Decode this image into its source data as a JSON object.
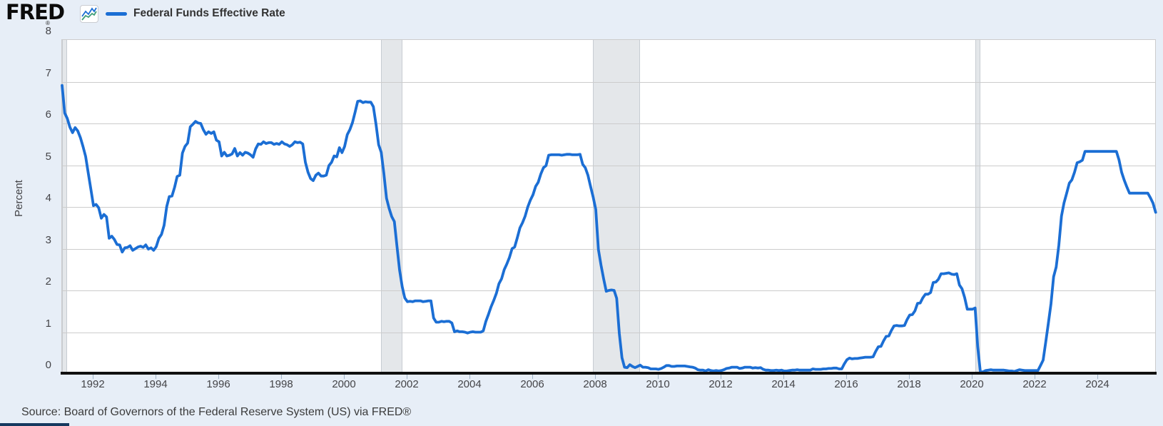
{
  "header": {
    "logo_text": "FRED",
    "registered_mark": "®",
    "legend": {
      "label": "Federal Funds Effective Rate"
    }
  },
  "source": {
    "text": "Source: Board of Governors of the Federal Reserve System (US) via FRED®"
  },
  "colors": {
    "background": "#e7eef7",
    "plot_background": "#ffffff",
    "line": "#1b6ed4",
    "gridline": "#cccccc",
    "axis": "#101010",
    "recession_band": "#e4e7ea",
    "recession_band_border": "#c7ccd2",
    "tick_text": "#444448",
    "navy_bar": "#15395f",
    "icon_line_green": "#3f9e78"
  },
  "chart_data": {
    "type": "line",
    "title": "Federal Funds Effective Rate",
    "xlabel": "",
    "ylabel": "Percent",
    "ylim": [
      0,
      8
    ],
    "yticks": [
      0,
      1,
      2,
      3,
      4,
      5,
      6,
      7,
      8
    ],
    "xticks": [
      1992,
      1994,
      1996,
      1998,
      2000,
      2002,
      2004,
      2006,
      2008,
      2010,
      2012,
      2014,
      2016,
      2018,
      2020,
      2022,
      2024
    ],
    "xlim_decimal_years": [
      1991.0,
      2025.92
    ],
    "grid": true,
    "legend_position": "top-left",
    "line_color": "#1b6ed4",
    "recession_bands": [
      {
        "start": "1990-07",
        "end": "1991-03"
      },
      {
        "start": "2001-03",
        "end": "2001-11"
      },
      {
        "start": "2007-12",
        "end": "2009-06"
      },
      {
        "start": "2020-02",
        "end": "2020-04"
      }
    ],
    "series": [
      {
        "name": "Federal Funds Effective Rate",
        "units": "Percent",
        "frequency": "monthly",
        "start": "1991-01",
        "end": "2025-11",
        "values": [
          6.91,
          6.25,
          6.12,
          5.91,
          5.78,
          5.9,
          5.82,
          5.66,
          5.45,
          5.21,
          4.81,
          4.43,
          4.03,
          4.06,
          3.98,
          3.73,
          3.82,
          3.76,
          3.25,
          3.3,
          3.22,
          3.1,
          3.09,
          2.92,
          3.02,
          3.03,
          3.07,
          2.96,
          3.0,
          3.04,
          3.06,
          3.03,
          3.09,
          2.99,
          3.02,
          2.96,
          3.05,
          3.25,
          3.34,
          3.56,
          4.01,
          4.25,
          4.26,
          4.47,
          4.73,
          4.76,
          5.29,
          5.45,
          5.53,
          5.92,
          5.98,
          6.05,
          6.01,
          6.0,
          5.85,
          5.74,
          5.8,
          5.76,
          5.8,
          5.6,
          5.56,
          5.22,
          5.31,
          5.22,
          5.24,
          5.27,
          5.4,
          5.22,
          5.3,
          5.24,
          5.31,
          5.29,
          5.25,
          5.19,
          5.39,
          5.51,
          5.5,
          5.56,
          5.52,
          5.54,
          5.54,
          5.5,
          5.52,
          5.5,
          5.56,
          5.51,
          5.49,
          5.45,
          5.49,
          5.56,
          5.54,
          5.55,
          5.51,
          5.07,
          4.83,
          4.68,
          4.63,
          4.76,
          4.81,
          4.74,
          4.74,
          4.76,
          4.99,
          5.07,
          5.22,
          5.2,
          5.42,
          5.3,
          5.45,
          5.73,
          5.85,
          6.02,
          6.27,
          6.53,
          6.54,
          6.5,
          6.52,
          6.51,
          6.51,
          6.4,
          5.98,
          5.49,
          5.31,
          4.8,
          4.21,
          3.97,
          3.77,
          3.65,
          3.07,
          2.49,
          2.09,
          1.82,
          1.73,
          1.74,
          1.73,
          1.75,
          1.75,
          1.75,
          1.73,
          1.74,
          1.75,
          1.75,
          1.34,
          1.24,
          1.24,
          1.26,
          1.25,
          1.26,
          1.26,
          1.22,
          1.01,
          1.03,
          1.01,
          1.01,
          1.0,
          0.98,
          1.0,
          1.01,
          1.0,
          1.0,
          1.0,
          1.03,
          1.26,
          1.43,
          1.61,
          1.76,
          1.93,
          2.16,
          2.28,
          2.5,
          2.63,
          2.79,
          3.0,
          3.04,
          3.26,
          3.5,
          3.62,
          3.78,
          4.0,
          4.16,
          4.29,
          4.49,
          4.59,
          4.79,
          4.94,
          4.99,
          5.24,
          5.25,
          5.25,
          5.25,
          5.25,
          5.24,
          5.25,
          5.26,
          5.26,
          5.25,
          5.25,
          5.25,
          5.26,
          5.02,
          4.94,
          4.76,
          4.49,
          4.24,
          3.94,
          2.98,
          2.61,
          2.28,
          1.98,
          2.0,
          2.01,
          2.0,
          1.81,
          0.97,
          0.39,
          0.16,
          0.15,
          0.22,
          0.18,
          0.15,
          0.18,
          0.21,
          0.16,
          0.16,
          0.15,
          0.12,
          0.12,
          0.12,
          0.11,
          0.13,
          0.16,
          0.2,
          0.2,
          0.18,
          0.18,
          0.19,
          0.19,
          0.19,
          0.19,
          0.18,
          0.17,
          0.16,
          0.14,
          0.1,
          0.09,
          0.09,
          0.07,
          0.1,
          0.08,
          0.07,
          0.08,
          0.07,
          0.08,
          0.1,
          0.13,
          0.14,
          0.16,
          0.16,
          0.16,
          0.13,
          0.14,
          0.16,
          0.16,
          0.16,
          0.14,
          0.15,
          0.14,
          0.15,
          0.11,
          0.09,
          0.09,
          0.08,
          0.08,
          0.09,
          0.08,
          0.09,
          0.07,
          0.07,
          0.08,
          0.09,
          0.09,
          0.1,
          0.09,
          0.09,
          0.09,
          0.09,
          0.09,
          0.12,
          0.11,
          0.11,
          0.11,
          0.12,
          0.12,
          0.13,
          0.13,
          0.14,
          0.14,
          0.12,
          0.12,
          0.24,
          0.34,
          0.38,
          0.36,
          0.37,
          0.37,
          0.38,
          0.39,
          0.4,
          0.4,
          0.4,
          0.41,
          0.54,
          0.65,
          0.66,
          0.79,
          0.9,
          0.91,
          1.04,
          1.15,
          1.16,
          1.15,
          1.15,
          1.16,
          1.3,
          1.41,
          1.42,
          1.51,
          1.69,
          1.7,
          1.82,
          1.91,
          1.91,
          1.95,
          2.19,
          2.2,
          2.27,
          2.4,
          2.4,
          2.41,
          2.42,
          2.39,
          2.38,
          2.4,
          2.13,
          2.04,
          1.83,
          1.55,
          1.55,
          1.55,
          1.58,
          0.65,
          0.05,
          0.05,
          0.08,
          0.09,
          0.1,
          0.09,
          0.09,
          0.09,
          0.09,
          0.09,
          0.08,
          0.07,
          0.07,
          0.06,
          0.08,
          0.1,
          0.09,
          0.08,
          0.08,
          0.08,
          0.08,
          0.08,
          0.08,
          0.2,
          0.33,
          0.77,
          1.21,
          1.68,
          2.33,
          2.56,
          3.08,
          3.78,
          4.1,
          4.33,
          4.57,
          4.65,
          4.83,
          5.06,
          5.08,
          5.12,
          5.33,
          5.33,
          5.33,
          5.33,
          5.33,
          5.33,
          5.33,
          5.33,
          5.33,
          5.33,
          5.33,
          5.33,
          5.33,
          5.13,
          4.83,
          4.64,
          4.48,
          4.33,
          4.33,
          4.33,
          4.33,
          4.33,
          4.33,
          4.33,
          4.33,
          4.22,
          4.09,
          3.87
        ]
      }
    ]
  }
}
